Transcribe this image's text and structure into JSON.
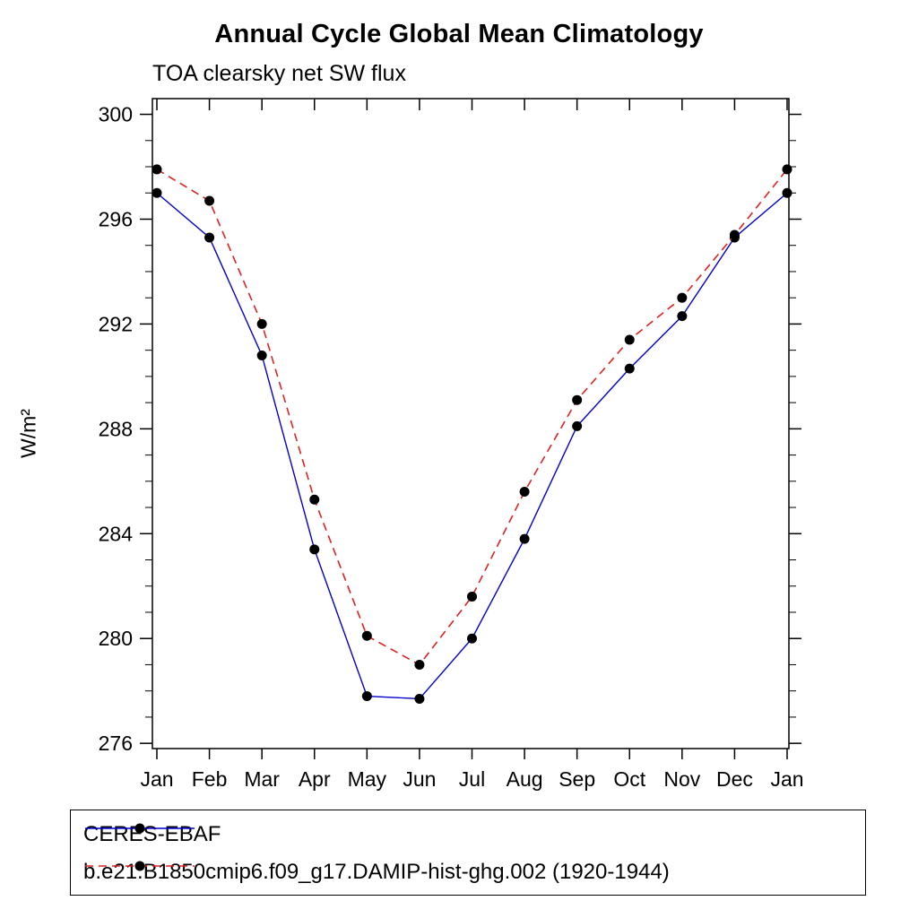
{
  "chart_data": {
    "type": "line",
    "title": "Annual Cycle Global Mean Climatology",
    "subtitle": "TOA clearsky net SW flux",
    "ylabel": "W/m²",
    "categories": [
      "Jan",
      "Feb",
      "Mar",
      "Apr",
      "May",
      "Jun",
      "Jul",
      "Aug",
      "Sep",
      "Oct",
      "Nov",
      "Dec",
      "Jan"
    ],
    "ylim": [
      275.8,
      300.6
    ],
    "yticks": [
      276,
      280,
      284,
      288,
      292,
      296,
      300
    ],
    "minor_tick_interval": 1,
    "grid": false,
    "legend_position": "bottom",
    "marker": {
      "shape": "circle",
      "color": "#000000",
      "radius": 5.5
    },
    "series": [
      {
        "name": "CERES-EBAF",
        "color": "#0000cc",
        "style": "solid",
        "values": [
          297.0,
          295.3,
          290.8,
          283.4,
          277.8,
          277.7,
          280.0,
          283.8,
          288.1,
          290.3,
          292.3,
          295.3,
          297.0
        ]
      },
      {
        "name": "b.e21.B1850cmip6.f09_g17.DAMIP-hist-ghg.002 (1920-1944)",
        "color": "#dd2222",
        "style": "dashed",
        "values": [
          297.9,
          296.7,
          292.0,
          285.3,
          280.1,
          279.0,
          281.6,
          285.6,
          289.1,
          291.4,
          293.0,
          295.4,
          297.9
        ]
      }
    ]
  }
}
